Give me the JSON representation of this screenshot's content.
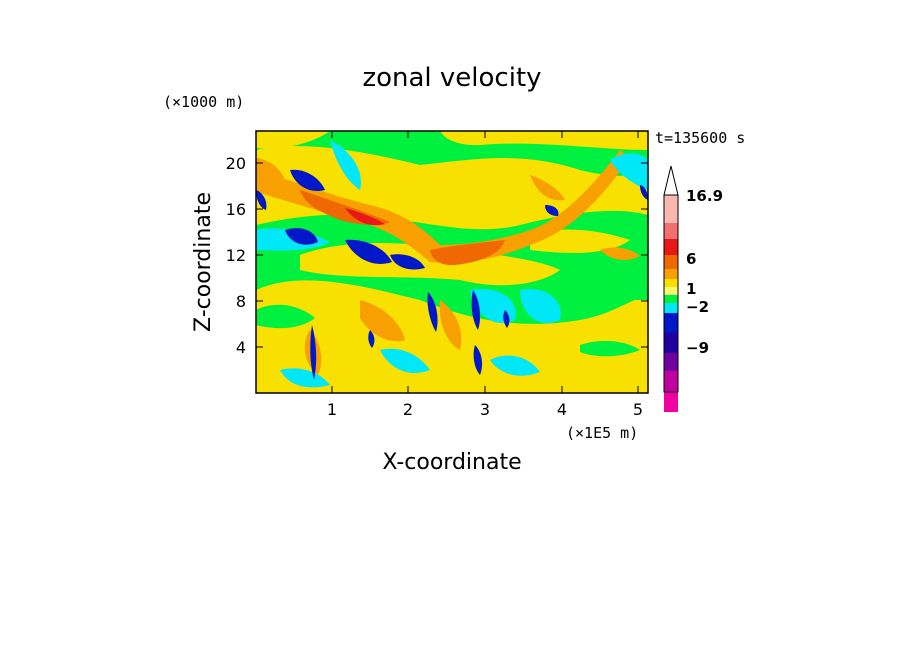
{
  "chart_data": {
    "type": "heatmap",
    "title": "zonal velocity",
    "xlabel": "X-coordinate",
    "ylabel": "Z-coordinate",
    "x_unit": "(×1E5 m)",
    "y_unit": "(×1000 m)",
    "time_label": "t=135600  s",
    "xlim": [
      0,
      5.15
    ],
    "ylim": [
      0,
      22.8
    ],
    "x_ticks": [
      "1",
      "2",
      "3",
      "4",
      "5"
    ],
    "y_ticks": [
      "4",
      "8",
      "12",
      "16",
      "20"
    ],
    "colorbar_labels": [
      "16.9",
      "6",
      "1",
      "−2",
      "−9"
    ],
    "colorbar_colors": [
      "#f8b8b0",
      "#f07070",
      "#e81818",
      "#f06800",
      "#f8a000",
      "#f8e000",
      "#f8f870",
      "#00f040",
      "#00e8f8",
      "#0018c8",
      "#2000a0",
      "#7000a0",
      "#c000a0",
      "#f000a0"
    ],
    "colorbar_levels": [
      16.9,
      12,
      9,
      6,
      3,
      1,
      0.5,
      0,
      -2,
      -4,
      -6,
      -9,
      -12,
      -15
    ]
  }
}
